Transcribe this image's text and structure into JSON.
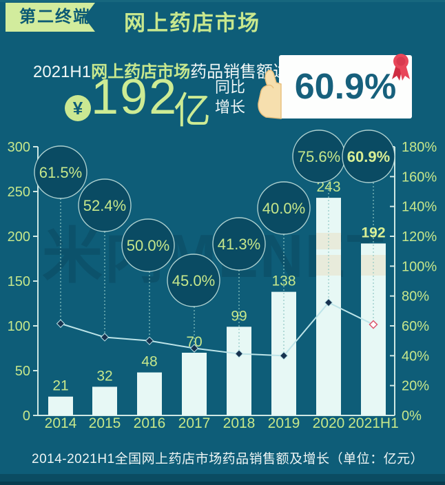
{
  "header": {
    "badge": "第二终端",
    "title": "网上药店市场"
  },
  "highlight": {
    "line1_prefix": "2021H1",
    "line1_market": "网上药店市场",
    "line1_suffix": "药品销售额达",
    "yen_symbol": "¥",
    "amount": "192",
    "amount_unit": "亿",
    "yoy_line1": "同比",
    "yoy_line2": "增长",
    "growth_value": "60.9%"
  },
  "chart_data": {
    "type": "bar+line combo",
    "categories": [
      "2014",
      "2015",
      "2016",
      "2017",
      "2018",
      "2019",
      "2020",
      "2021H1"
    ],
    "series": [
      {
        "name": "药品销售额（亿元）",
        "type": "bar",
        "values": [
          21,
          32,
          48,
          70,
          99,
          138,
          243,
          192
        ]
      },
      {
        "name": "同比增长",
        "type": "line",
        "values_pct": [
          61.5,
          52.4,
          50.0,
          45.0,
          41.3,
          40.0,
          75.6,
          60.9
        ],
        "labels": [
          "61.5%",
          "52.4%",
          "50.0%",
          "45.0%",
          "41.3%",
          "40.0%",
          "75.6%",
          "60.9%"
        ]
      }
    ],
    "left_axis": {
      "min": 0,
      "max": 300,
      "ticks": [
        "300",
        "250",
        "200",
        "150",
        "100",
        "50",
        "0"
      ]
    },
    "right_axis": {
      "min_pct": 0,
      "max_pct": 180,
      "ticks": [
        "180%",
        "160%",
        "140%",
        "120%",
        "100%",
        "80%",
        "60%",
        "40%",
        "20%",
        "0%"
      ]
    },
    "highlight_last_index": 7,
    "grid": false,
    "legend": false
  },
  "caption": "2014-2021H1全国网上药店市场药品销售额及增长（单位：亿元）",
  "watermark": "米内MENET",
  "colors": {
    "background": "#0e5d78",
    "accent_green": "#c6e78b",
    "accent_green_bold": "#d9ef94",
    "badge_bg": "#d2ec9d",
    "bar_fill": "#e7f8f5",
    "bubble_fill": "#0a4b63",
    "bubble_stroke": "#cbe8e2",
    "axis": "#cfe8e4",
    "line": "#bde4e8",
    "marker_fill": "#17324f",
    "marker_last_stroke": "#dd5a70",
    "card_text": "#17607c",
    "ribbon_red": "#e8475a",
    "white_text": "#f2f8f7"
  }
}
